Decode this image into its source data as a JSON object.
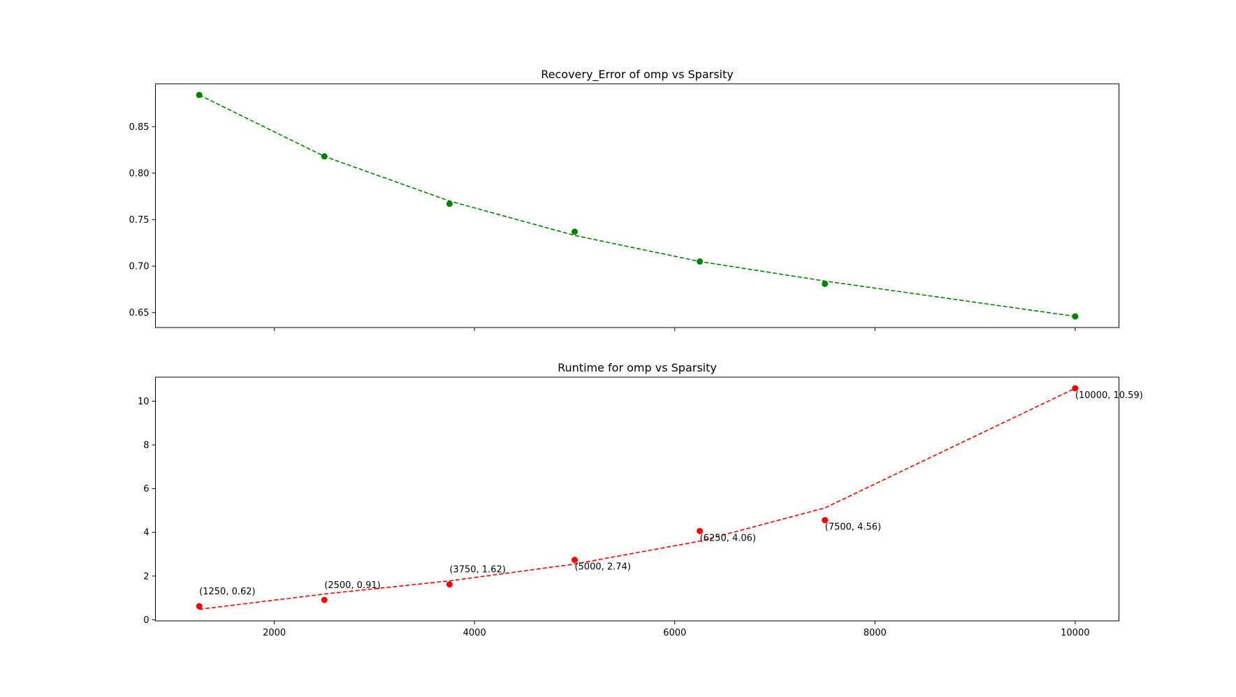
{
  "chart_data": [
    {
      "type": "line",
      "title": "Recovery_Error of omp vs Sparsity",
      "xlabel": "",
      "ylabel": "",
      "xlim": [
        812.5,
        10437.5
      ],
      "ylim": [
        0.634,
        0.896
      ],
      "xticks": [
        2000,
        4000,
        6000,
        8000,
        10000
      ],
      "show_xtick_labels": false,
      "yticks": [
        0.65,
        0.7,
        0.75,
        0.8,
        0.85
      ],
      "ytick_labels": [
        "0.65",
        "0.70",
        "0.75",
        "0.80",
        "0.85"
      ],
      "grid": false,
      "series": [
        {
          "kind": "points",
          "marker": "circle",
          "color": "#008000",
          "x": [
            1250,
            2500,
            3750,
            5000,
            6250,
            7500,
            10000
          ],
          "y": [
            0.884,
            0.818,
            0.767,
            0.737,
            0.705,
            0.681,
            0.646
          ]
        },
        {
          "kind": "fit",
          "style": "dashed",
          "color": "#008000",
          "x": [
            1250,
            2500,
            3750,
            5000,
            6250,
            7500,
            10000
          ],
          "y": [
            0.884,
            0.818,
            0.77,
            0.733,
            0.705,
            0.684,
            0.646
          ]
        }
      ]
    },
    {
      "type": "line",
      "title": "Runtime for omp vs Sparsity",
      "xlabel": "",
      "ylabel": "",
      "xlim": [
        812.5,
        10437.5
      ],
      "ylim": [
        -0.05,
        11.1
      ],
      "xticks": [
        2000,
        4000,
        6000,
        8000,
        10000
      ],
      "xtick_labels": [
        "2000",
        "4000",
        "6000",
        "8000",
        "10000"
      ],
      "show_xtick_labels": true,
      "yticks": [
        0,
        2,
        4,
        6,
        8,
        10
      ],
      "ytick_labels": [
        "0",
        "2",
        "4",
        "6",
        "8",
        "10"
      ],
      "grid": false,
      "series": [
        {
          "kind": "points",
          "marker": "circle",
          "color": "#ff0000",
          "x": [
            1250,
            2500,
            3750,
            5000,
            6250,
            7500,
            10000
          ],
          "y": [
            0.62,
            0.91,
            1.62,
            2.74,
            4.06,
            4.56,
            10.59
          ]
        },
        {
          "kind": "fit",
          "style": "dashed",
          "color": "#ff0000",
          "x": [
            1250,
            2500,
            3750,
            5000,
            6250,
            7500,
            10000
          ],
          "y": [
            0.48,
            1.18,
            1.78,
            2.55,
            3.6,
            5.12,
            10.59
          ]
        }
      ],
      "annotations": [
        {
          "text": "(1250, 0.62)",
          "x": 1250,
          "y": 0.62,
          "placement": "above"
        },
        {
          "text": "(2500, 0.91)",
          "x": 2500,
          "y": 0.91,
          "placement": "above"
        },
        {
          "text": "(3750, 1.62)",
          "x": 3750,
          "y": 1.62,
          "placement": "above"
        },
        {
          "text": "(5000, 2.74)",
          "x": 5000,
          "y": 2.74,
          "placement": "below"
        },
        {
          "text": "(6250, 4.06)",
          "x": 6250,
          "y": 4.06,
          "placement": "below"
        },
        {
          "text": "(7500, 4.56)",
          "x": 7500,
          "y": 4.56,
          "placement": "below"
        },
        {
          "text": "(10000, 10.59)",
          "x": 10000,
          "y": 10.59,
          "placement": "below"
        }
      ]
    }
  ]
}
